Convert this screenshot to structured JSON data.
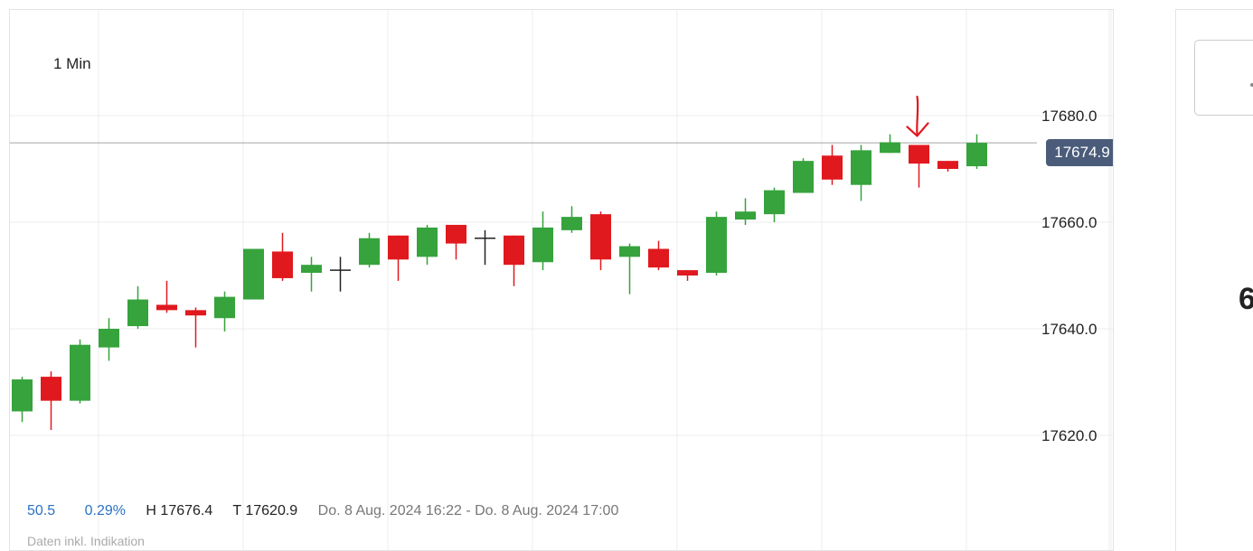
{
  "timeframe": "1 Min",
  "current_price_label": "17674.9",
  "stats": {
    "change": "50.5",
    "change_pct": "0.29%",
    "high": "H 17676.4",
    "low": "T 17620.9",
    "range": "Do. 8 Aug. 2024 16:22 - Do. 8 Aug. 2024 17:00"
  },
  "footer_note": "Daten inkl. Indikation",
  "right_panel": {
    "value": "6"
  },
  "colors": {
    "up": "#36a33c",
    "down": "#e0191e",
    "doji": "#222222",
    "price_tag": "#4b5c7a",
    "annotation": "#e0191e"
  },
  "chart_data": {
    "type": "candlestick",
    "title": "",
    "xlabel": "",
    "ylabel": "",
    "ylim": [
      17600,
      17700
    ],
    "yticks": [
      17620,
      17640,
      17660,
      17680
    ],
    "ytick_labels": [
      "17620.0",
      "17640.0",
      "17660.0",
      "17680.0"
    ],
    "grid": true,
    "current_price": 17674.9,
    "annotation": "red down-arrow above candle 31",
    "candles": [
      {
        "o": 17624.5,
        "h": 17631.0,
        "l": 17622.5,
        "c": 17630.5
      },
      {
        "o": 17631.0,
        "h": 17632.0,
        "l": 17621.0,
        "c": 17626.5
      },
      {
        "o": 17626.5,
        "h": 17638.0,
        "l": 17626.0,
        "c": 17637.0
      },
      {
        "o": 17636.5,
        "h": 17642.0,
        "l": 17634.0,
        "c": 17640.0
      },
      {
        "o": 17640.5,
        "h": 17648.0,
        "l": 17640.0,
        "c": 17645.5
      },
      {
        "o": 17644.5,
        "h": 17649.0,
        "l": 17643.0,
        "c": 17643.5
      },
      {
        "o": 17643.5,
        "h": 17644.0,
        "l": 17636.5,
        "c": 17642.5
      },
      {
        "o": 17642.0,
        "h": 17647.0,
        "l": 17639.5,
        "c": 17646.0
      },
      {
        "o": 17645.5,
        "h": 17655.0,
        "l": 17645.5,
        "c": 17655.0
      },
      {
        "o": 17654.5,
        "h": 17658.0,
        "l": 17649.0,
        "c": 17649.5
      },
      {
        "o": 17650.5,
        "h": 17653.5,
        "l": 17647.0,
        "c": 17652.0
      },
      {
        "o": 17651.0,
        "h": 17653.5,
        "l": 17647.0,
        "c": 17651.0
      },
      {
        "o": 17652.0,
        "h": 17658.0,
        "l": 17651.5,
        "c": 17657.0
      },
      {
        "o": 17657.5,
        "h": 17657.5,
        "l": 17649.0,
        "c": 17653.0
      },
      {
        "o": 17653.5,
        "h": 17659.5,
        "l": 17652.0,
        "c": 17659.0
      },
      {
        "o": 17659.5,
        "h": 17659.5,
        "l": 17653.0,
        "c": 17656.0
      },
      {
        "o": 17656.5,
        "h": 17658.5,
        "l": 17652.0,
        "c": 17657.0
      },
      {
        "o": 17657.5,
        "h": 17657.5,
        "l": 17648.0,
        "c": 17652.0
      },
      {
        "o": 17652.5,
        "h": 17662.0,
        "l": 17651.0,
        "c": 17659.0
      },
      {
        "o": 17658.5,
        "h": 17663.0,
        "l": 17658.0,
        "c": 17661.0
      },
      {
        "o": 17661.5,
        "h": 17662.0,
        "l": 17651.0,
        "c": 17653.0
      },
      {
        "o": 17653.5,
        "h": 17656.0,
        "l": 17646.5,
        "c": 17655.5
      },
      {
        "o": 17655.0,
        "h": 17656.5,
        "l": 17651.0,
        "c": 17651.5
      },
      {
        "o": 17651.0,
        "h": 17651.0,
        "l": 17649.0,
        "c": 17650.0
      },
      {
        "o": 17650.5,
        "h": 17662.0,
        "l": 17650.0,
        "c": 17661.0
      },
      {
        "o": 17660.5,
        "h": 17664.5,
        "l": 17659.5,
        "c": 17662.0
      },
      {
        "o": 17661.5,
        "h": 17666.5,
        "l": 17660.0,
        "c": 17666.0
      },
      {
        "o": 17665.5,
        "h": 17672.0,
        "l": 17665.5,
        "c": 17671.5
      },
      {
        "o": 17672.5,
        "h": 17674.5,
        "l": 17667.0,
        "c": 17668.0
      },
      {
        "o": 17667.0,
        "h": 17674.5,
        "l": 17664.0,
        "c": 17673.5
      },
      {
        "o": 17673.0,
        "h": 17676.5,
        "l": 17673.0,
        "c": 17675.0
      },
      {
        "o": 17674.5,
        "h": 17674.5,
        "l": 17666.5,
        "c": 17671.0
      },
      {
        "o": 17671.5,
        "h": 17671.5,
        "l": 17669.5,
        "c": 17670.0
      },
      {
        "o": 17670.5,
        "h": 17676.5,
        "l": 17670.0,
        "c": 17674.9
      }
    ]
  }
}
